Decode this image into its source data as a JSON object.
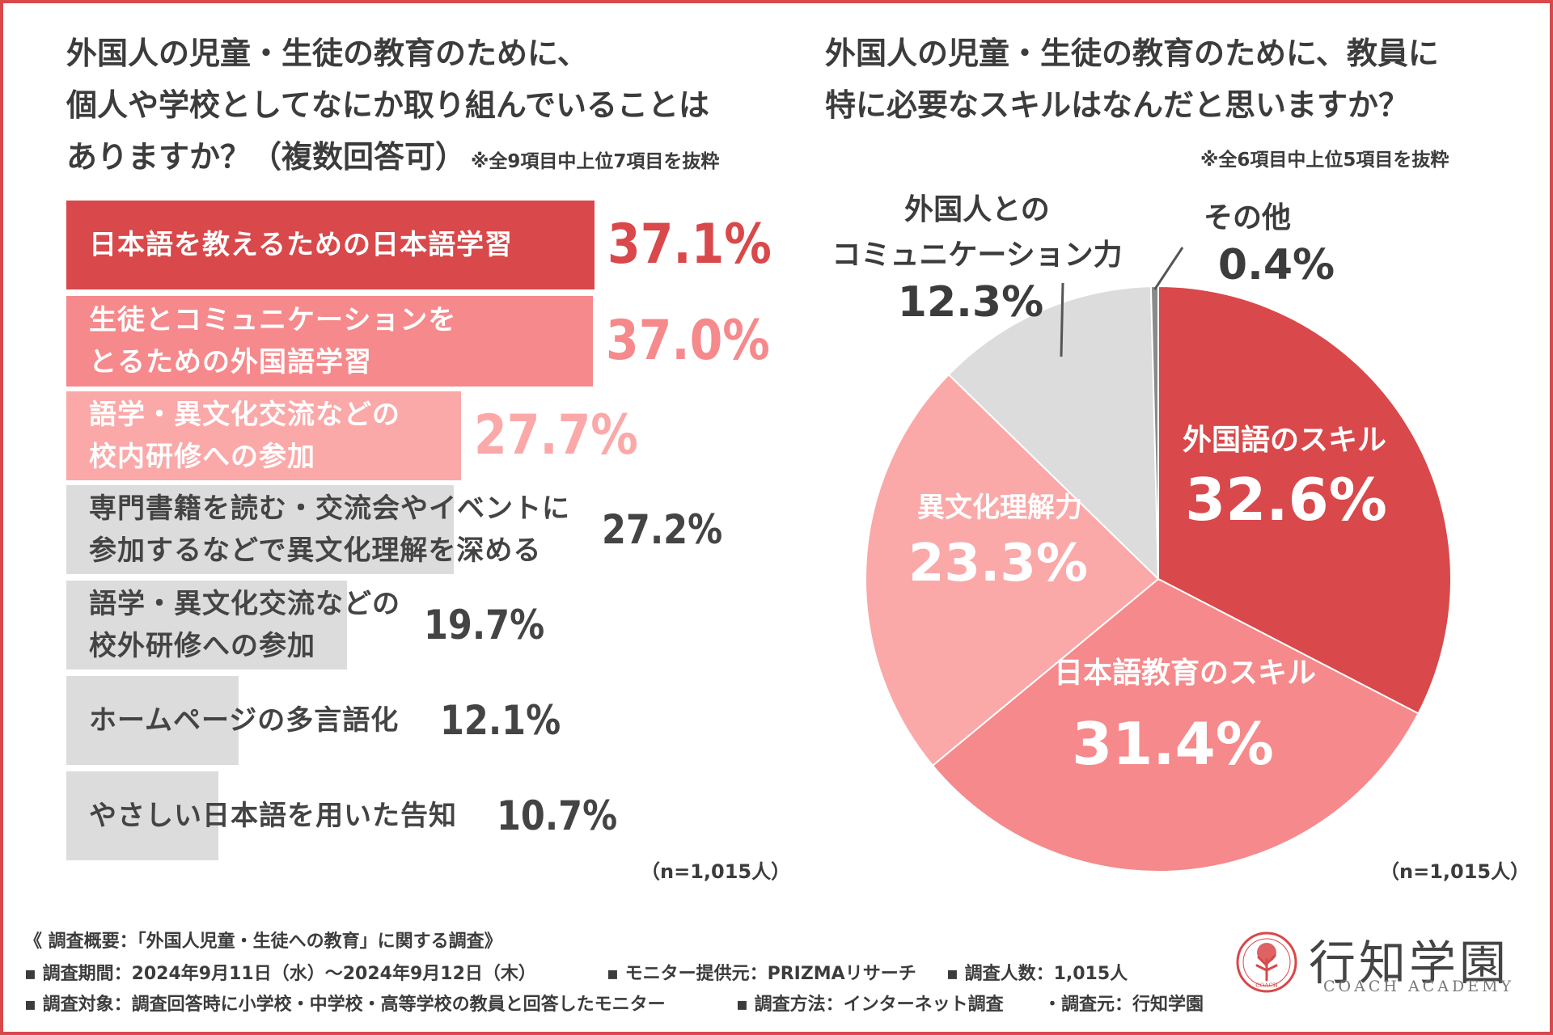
{
  "bar_chart": {
    "title_lines": [
      "外国人の児童・生徒の教育のために、",
      "個人や学校としてなにか取り組んでいることは",
      "ありますか？（複数回答可）"
    ],
    "note": "※全9項目中上位7項目を抜粋",
    "sample": "（n=1,015人）"
  },
  "pie_chart": {
    "title_lines": [
      "外国人の児童・生徒の教育のために、教員に",
      "特に必要なスキルはなんだと思いますか？"
    ],
    "note": "※全6項目中上位5項目を抜粋",
    "sample": "（n=1,015人）"
  },
  "chart_data": [
    {
      "type": "bar",
      "orientation": "horizontal",
      "title": "外国人の児童・生徒の教育のために、個人や学校としてなにか取り組んでいることはありますか？（複数回答可）",
      "categories": [
        "日本語を教えるための日本語学習",
        "生徒とコミュニケーションを\nとるための外国語学習",
        "語学・異文化交流などの\n校内研修への参加",
        "専門書籍を読む・交流会やイベントに\n参加するなどで異文化理解を深める",
        "語学・異文化交流などの\n校外研修への参加",
        "ホームページの多言語化",
        "やさしい日本語を用いた告知"
      ],
      "values": [
        37.1,
        37.0,
        27.7,
        27.2,
        19.7,
        12.1,
        10.7
      ],
      "value_labels": [
        "37.1%",
        "37.0%",
        "27.7%",
        "27.2%",
        "19.7%",
        "12.1%",
        "10.7%"
      ],
      "colors": [
        "#d9484a",
        "#f6898b",
        "#fba8a8",
        "#dcdcdc",
        "#dcdcdc",
        "#dcdcdc",
        "#dcdcdc"
      ],
      "value_colors": [
        "#d9484a",
        "#f6898b",
        "#fba8a8",
        "#444444",
        "#444444",
        "#444444",
        "#444444"
      ],
      "label_colors": [
        "#ffffff",
        "#ffffff",
        "#ffffff",
        "#444444",
        "#444444",
        "#444444",
        "#444444"
      ],
      "unit": "%"
    },
    {
      "type": "pie",
      "title": "外国人の児童・生徒の教育のために、教員に特に必要なスキルはなんだと思いますか？",
      "labels": [
        "外国語のスキル",
        "日本語教育のスキル",
        "異文化理解力",
        "外国人との\nコミュニケーション力",
        "その他"
      ],
      "values": [
        32.6,
        31.4,
        23.3,
        12.3,
        0.4
      ],
      "value_labels": [
        "32.6%",
        "31.4%",
        "23.3%",
        "12.3%",
        "0.4%"
      ],
      "colors": [
        "#d9484a",
        "#f6898b",
        "#fba8a8",
        "#dcdcdc",
        "#8a8a8a"
      ],
      "unit": "%"
    }
  ],
  "footer": {
    "summary": "《 調査概要：「外国人児童・生徒への教育」に関する調査》",
    "period": "▪ 調査期間：2024年9月11日（水）～2024年9月12日（木）",
    "provider": "▪ モニター提供元：PRIZMAリサーチ",
    "count": "▪ 調査人数：1,015人",
    "target": "▪ 調査対象：調査回答時に小学校・中学校・高等学校の教員と回答したモニター",
    "method": "▪ 調査方法：インターネット調査",
    "source": "・調査元：行知学園"
  },
  "logo": {
    "name": "行知学園",
    "sub": "COACH ACADEMY",
    "seal_text": "COACH",
    "colors": {
      "accent": "#d9484a"
    }
  }
}
